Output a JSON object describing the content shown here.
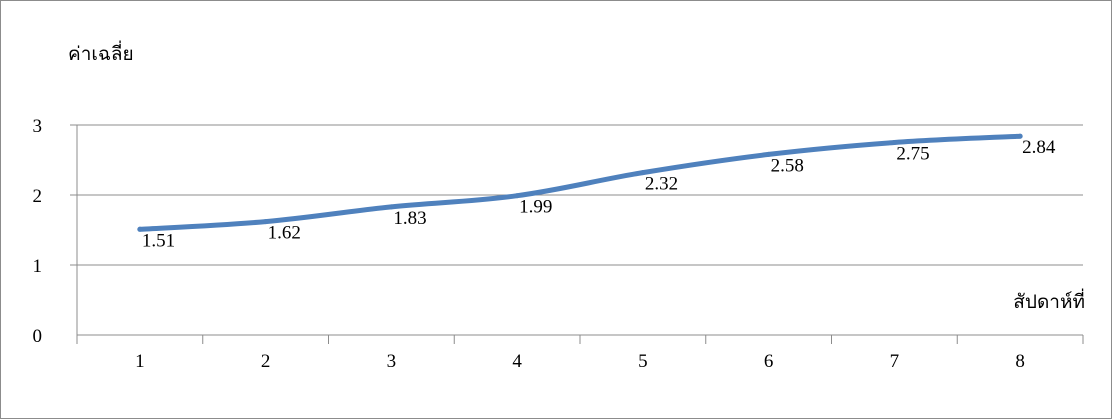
{
  "chart_data": {
    "type": "line",
    "title": "",
    "ylabel": "ค่าเฉลี่ย",
    "xlabel": "สัปดาห์ที่",
    "categories": [
      "1",
      "2",
      "3",
      "4",
      "5",
      "6",
      "7",
      "8"
    ],
    "series": [
      {
        "values": [
          1.51,
          1.62,
          1.83,
          1.99,
          2.32,
          2.58,
          2.75,
          2.84
        ],
        "color": "#4f81bd"
      }
    ],
    "y_ticks": [
      "0",
      "1",
      "2",
      "3"
    ],
    "ylim": [
      0,
      3
    ],
    "grid": true,
    "legend": "none"
  }
}
